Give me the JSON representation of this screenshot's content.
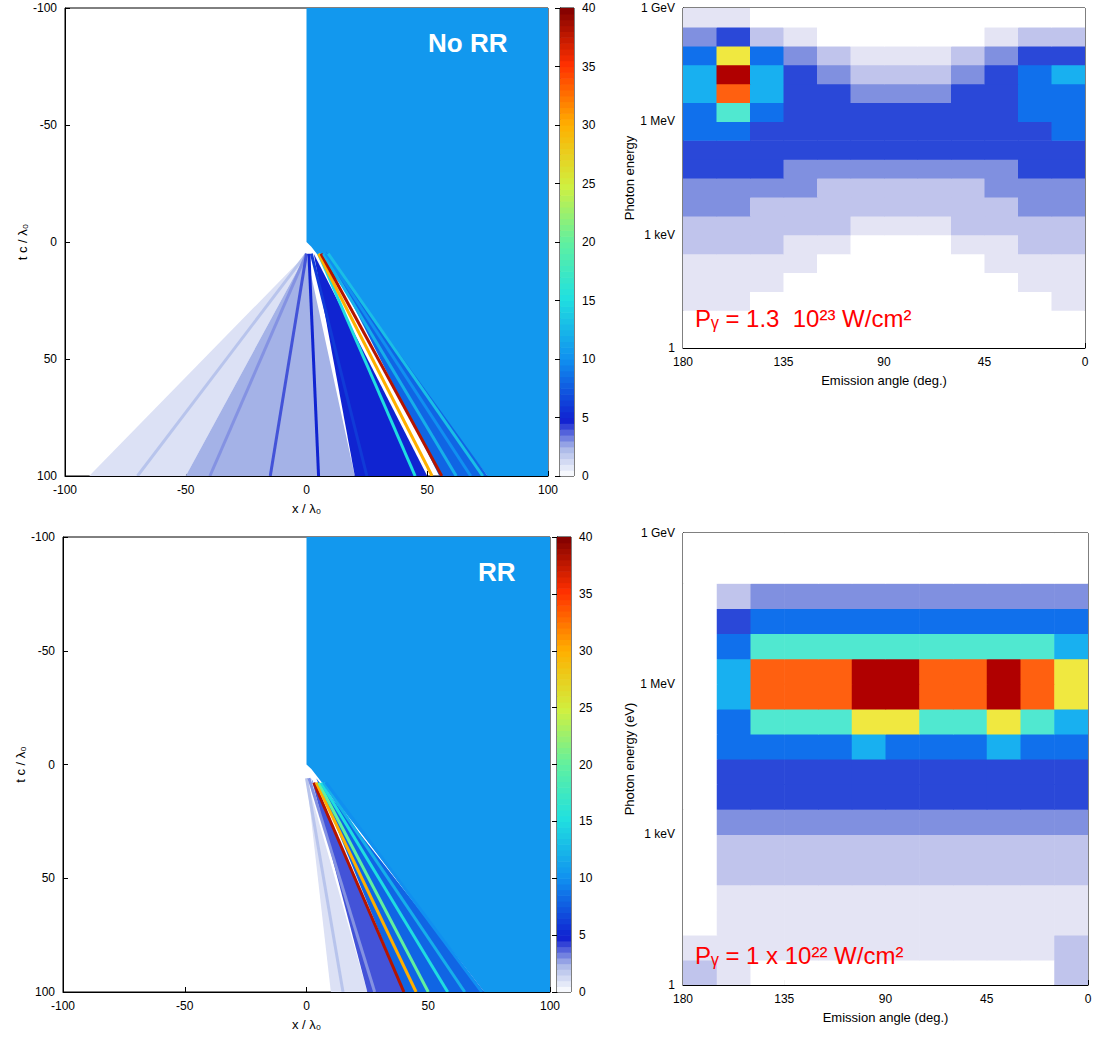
{
  "chart_data": [
    {
      "type": "heatmap",
      "annotation": "No RR",
      "x_label": "x / λ₀",
      "y_label": "t c / λ₀",
      "xlim": [
        -100,
        100
      ],
      "ylim": [
        100,
        -100
      ],
      "xticks": [
        -100,
        -50,
        0,
        50,
        100
      ],
      "yticks": [
        -100,
        -50,
        0,
        50,
        100
      ],
      "colorbar": {
        "range": [
          0,
          40
        ],
        "ticks": [
          0,
          5,
          10,
          15,
          20,
          25,
          30,
          35,
          40
        ]
      },
      "regions": [
        {
          "value": 10.5,
          "points": [
            [
              0,
              -100
            ],
            [
              100,
              -100
            ],
            [
              100,
              100
            ],
            [
              75,
              100
            ],
            [
              2,
              2
            ],
            [
              0,
              0
            ]
          ]
        },
        {
          "value": 1,
          "points": [
            [
              0,
              5
            ],
            [
              -90,
              100
            ],
            [
              -50,
              100
            ]
          ]
        },
        {
          "value": 2.5,
          "points": [
            [
              0,
              5
            ],
            [
              -50,
              100
            ],
            [
              20,
              100
            ]
          ]
        },
        {
          "value": 5,
          "points": [
            [
              3,
              5
            ],
            [
              20,
              100
            ],
            [
              50,
              100
            ]
          ]
        },
        {
          "value": 8,
          "points": [
            [
              8,
              4
            ],
            [
              55,
              100
            ],
            [
              75,
              100
            ]
          ]
        }
      ],
      "streaks": [
        {
          "value": 2,
          "from": [
            0,
            5
          ],
          "to": [
            -70,
            100
          ]
        },
        {
          "value": 3,
          "from": [
            0,
            5
          ],
          "to": [
            -40,
            100
          ]
        },
        {
          "value": 4,
          "from": [
            0,
            5
          ],
          "to": [
            -15,
            100
          ]
        },
        {
          "value": 5,
          "from": [
            1,
            5
          ],
          "to": [
            5,
            100
          ]
        },
        {
          "value": 6,
          "from": [
            2,
            5
          ],
          "to": [
            25,
            100
          ]
        },
        {
          "value": 15,
          "from": [
            5,
            5
          ],
          "to": [
            45,
            100
          ]
        },
        {
          "value": 30,
          "from": [
            5,
            5
          ],
          "to": [
            52,
            100
          ]
        },
        {
          "value": 38,
          "from": [
            6,
            5
          ],
          "to": [
            56,
            100
          ]
        },
        {
          "value": 12,
          "from": [
            7,
            5
          ],
          "to": [
            62,
            100
          ]
        },
        {
          "value": 10,
          "from": [
            8,
            5
          ],
          "to": [
            68,
            100
          ]
        },
        {
          "value": 13,
          "from": [
            9,
            5
          ],
          "to": [
            73,
            100
          ]
        }
      ]
    },
    {
      "type": "heatmap",
      "annotation": "Pᵧ = 1.3  10²³ W/cm²",
      "x_label": "Emission angle (deg.)",
      "y_label": "Photon energy",
      "log": "y",
      "xlim": [
        180,
        0
      ],
      "ylim": [
        1,
        1000000000
      ],
      "xticks": [
        180,
        135,
        90,
        45,
        0
      ],
      "yticks": [
        {
          "value": 1,
          "label": "1"
        },
        {
          "value": 1000,
          "label": "1 keV"
        },
        {
          "value": 1000000,
          "label": "1 MeV"
        },
        {
          "value": 1000000000,
          "label": "1 GeV"
        }
      ],
      "angle_bins": [
        180,
        165,
        150,
        135,
        120,
        105,
        90,
        75,
        60,
        45,
        30,
        15,
        0
      ],
      "energy_bins": [
        1,
        3.162,
        10,
        31.62,
        100,
        316.2,
        1000,
        3162,
        10000,
        31620,
        100000,
        316200,
        1000000,
        3162000,
        10000000,
        31620000,
        100000000,
        316200000,
        1000000000
      ],
      "color_range": [
        0,
        10
      ],
      "cells": [
        [
          0,
          0,
          0,
          0,
          0,
          0,
          0,
          0,
          0,
          0,
          0,
          0
        ],
        [
          0,
          0,
          0,
          0,
          0,
          0,
          0,
          0,
          0,
          0,
          0,
          0
        ],
        [
          1,
          1,
          0,
          0,
          0,
          0,
          0,
          0,
          0,
          0,
          0,
          1
        ],
        [
          1,
          1,
          1,
          0,
          0,
          0,
          0,
          0,
          0,
          0,
          1,
          1
        ],
        [
          1,
          1,
          1,
          1,
          0,
          0,
          0,
          0,
          0,
          1,
          1,
          1
        ],
        [
          2,
          2,
          2,
          1,
          1,
          0,
          0,
          0,
          1,
          1,
          2,
          2
        ],
        [
          2,
          2,
          2,
          2,
          2,
          1,
          1,
          1,
          2,
          2,
          2,
          2
        ],
        [
          3,
          3,
          2,
          2,
          2,
          2,
          2,
          2,
          2,
          2,
          3,
          3
        ],
        [
          3,
          3,
          3,
          3,
          2,
          2,
          2,
          2,
          2,
          3,
          3,
          3
        ],
        [
          4,
          4,
          4,
          3,
          3,
          3,
          3,
          3,
          3,
          3,
          4,
          4
        ],
        [
          4,
          4,
          4,
          4,
          4,
          4,
          4,
          4,
          4,
          4,
          4,
          4
        ],
        [
          5,
          5,
          4,
          4,
          4,
          4,
          4,
          4,
          4,
          4,
          4,
          5
        ],
        [
          5,
          7,
          5,
          4,
          4,
          4,
          4,
          4,
          4,
          4,
          5,
          5
        ],
        [
          6,
          9,
          6,
          4,
          4,
          3,
          3,
          3,
          4,
          4,
          5,
          5
        ],
        [
          6,
          10,
          6,
          4,
          3,
          2,
          2,
          2,
          3,
          4,
          5,
          6
        ],
        [
          5,
          8,
          5,
          3,
          2,
          1,
          1,
          1,
          2,
          3,
          4,
          4
        ],
        [
          3,
          4,
          2,
          1,
          0,
          0,
          0,
          0,
          0,
          1,
          2,
          2
        ],
        [
          1,
          1,
          0,
          0,
          0,
          0,
          0,
          0,
          0,
          0,
          0,
          0
        ]
      ]
    },
    {
      "type": "heatmap",
      "annotation": "RR",
      "x_label": "x / λ₀",
      "y_label": "t c / λ₀",
      "xlim": [
        -100,
        100
      ],
      "ylim": [
        100,
        -100
      ],
      "xticks": [
        -100,
        -50,
        0,
        50,
        100
      ],
      "yticks": [
        -100,
        -50,
        0,
        50,
        100
      ],
      "colorbar": {
        "range": [
          0,
          40
        ],
        "ticks": [
          0,
          5,
          10,
          15,
          20,
          25,
          30,
          35,
          40
        ]
      },
      "regions": [
        {
          "value": 10.5,
          "points": [
            [
              0,
              -100
            ],
            [
              100,
              -100
            ],
            [
              100,
              100
            ],
            [
              73,
              100
            ],
            [
              2,
              2
            ],
            [
              0,
              0
            ]
          ]
        },
        {
          "value": 1,
          "points": [
            [
              0,
              6
            ],
            [
              10,
              100
            ],
            [
              25,
              100
            ]
          ]
        },
        {
          "value": 4,
          "points": [
            [
              2,
              6
            ],
            [
              25,
              100
            ],
            [
              40,
              100
            ]
          ]
        },
        {
          "value": 8,
          "points": [
            [
              4,
              6
            ],
            [
              40,
              100
            ],
            [
              73,
              100
            ]
          ]
        }
      ],
      "streaks": [
        {
          "value": 2,
          "from": [
            0,
            6
          ],
          "to": [
            15,
            100
          ]
        },
        {
          "value": 3,
          "from": [
            1,
            6
          ],
          "to": [
            28,
            100
          ]
        },
        {
          "value": 38,
          "from": [
            3,
            8
          ],
          "to": [
            40,
            100
          ]
        },
        {
          "value": 30,
          "from": [
            4,
            8
          ],
          "to": [
            45,
            100
          ]
        },
        {
          "value": 20,
          "from": [
            5,
            8
          ],
          "to": [
            50,
            100
          ]
        },
        {
          "value": 15,
          "from": [
            6,
            8
          ],
          "to": [
            58,
            100
          ]
        },
        {
          "value": 12,
          "from": [
            7,
            8
          ],
          "to": [
            65,
            100
          ]
        },
        {
          "value": 10,
          "from": [
            8,
            8
          ],
          "to": [
            72,
            100
          ]
        }
      ]
    },
    {
      "type": "heatmap",
      "annotation": "Pᵧ = 1 x 10²² W/cm²",
      "x_label": "Emission angle (deg.)",
      "y_label": "Photon energy (eV)",
      "log": "y",
      "xlim": [
        180,
        0
      ],
      "ylim": [
        1,
        1000000000
      ],
      "xticks": [
        180,
        135,
        90,
        45,
        0
      ],
      "yticks": [
        {
          "value": 1,
          "label": "1"
        },
        {
          "value": 1000,
          "label": "1 keV"
        },
        {
          "value": 1000000,
          "label": "1 MeV"
        },
        {
          "value": 1000000000,
          "label": "1 GeV"
        }
      ],
      "angle_bins": [
        180,
        165,
        150,
        135,
        120,
        105,
        90,
        75,
        60,
        45,
        30,
        15,
        0
      ],
      "energy_bins": [
        1,
        3.162,
        10,
        31.62,
        100,
        316.2,
        1000,
        3162,
        10000,
        31620,
        100000,
        316200,
        1000000,
        3162000,
        10000000,
        31620000,
        100000000,
        316200000,
        1000000000
      ],
      "color_range": [
        0,
        10
      ],
      "cells": [
        [
          2,
          1,
          0,
          0,
          0,
          0,
          0,
          0,
          0,
          0,
          0,
          2
        ],
        [
          1,
          1,
          1,
          1,
          1,
          1,
          1,
          1,
          1,
          1,
          1,
          2
        ],
        [
          0,
          1,
          1,
          1,
          1,
          1,
          1,
          1,
          1,
          1,
          1,
          1
        ],
        [
          0,
          1,
          1,
          1,
          1,
          1,
          1,
          1,
          1,
          1,
          1,
          1
        ],
        [
          0,
          2,
          2,
          2,
          2,
          2,
          2,
          2,
          2,
          2,
          2,
          2
        ],
        [
          0,
          2,
          2,
          2,
          2,
          2,
          2,
          2,
          2,
          2,
          2,
          2
        ],
        [
          0,
          3,
          3,
          3,
          3,
          3,
          3,
          3,
          3,
          3,
          3,
          3
        ],
        [
          0,
          4,
          4,
          4,
          4,
          4,
          4,
          4,
          4,
          4,
          4,
          4
        ],
        [
          0,
          4,
          4,
          4,
          4,
          4,
          4,
          4,
          4,
          4,
          4,
          4
        ],
        [
          0,
          5,
          5,
          5,
          5,
          6,
          5,
          5,
          5,
          6,
          5,
          5
        ],
        [
          0,
          5,
          7,
          7,
          7,
          8,
          8,
          7,
          7,
          8,
          7,
          6
        ],
        [
          0,
          6,
          9,
          9,
          9,
          10,
          10,
          9,
          9,
          10,
          9,
          8
        ],
        [
          0,
          6,
          9,
          9,
          9,
          10,
          10,
          9,
          9,
          10,
          9,
          8
        ],
        [
          0,
          5,
          7,
          7,
          7,
          7,
          7,
          7,
          7,
          7,
          7,
          6
        ],
        [
          0,
          4,
          5,
          5,
          5,
          5,
          5,
          5,
          5,
          5,
          5,
          5
        ],
        [
          0,
          2,
          3,
          3,
          3,
          3,
          3,
          3,
          3,
          3,
          3,
          3
        ],
        [
          0,
          0,
          0,
          0,
          0,
          0,
          0,
          0,
          0,
          0,
          0,
          0
        ],
        [
          0,
          0,
          0,
          0,
          0,
          0,
          0,
          0,
          0,
          0,
          0,
          0
        ]
      ]
    }
  ]
}
